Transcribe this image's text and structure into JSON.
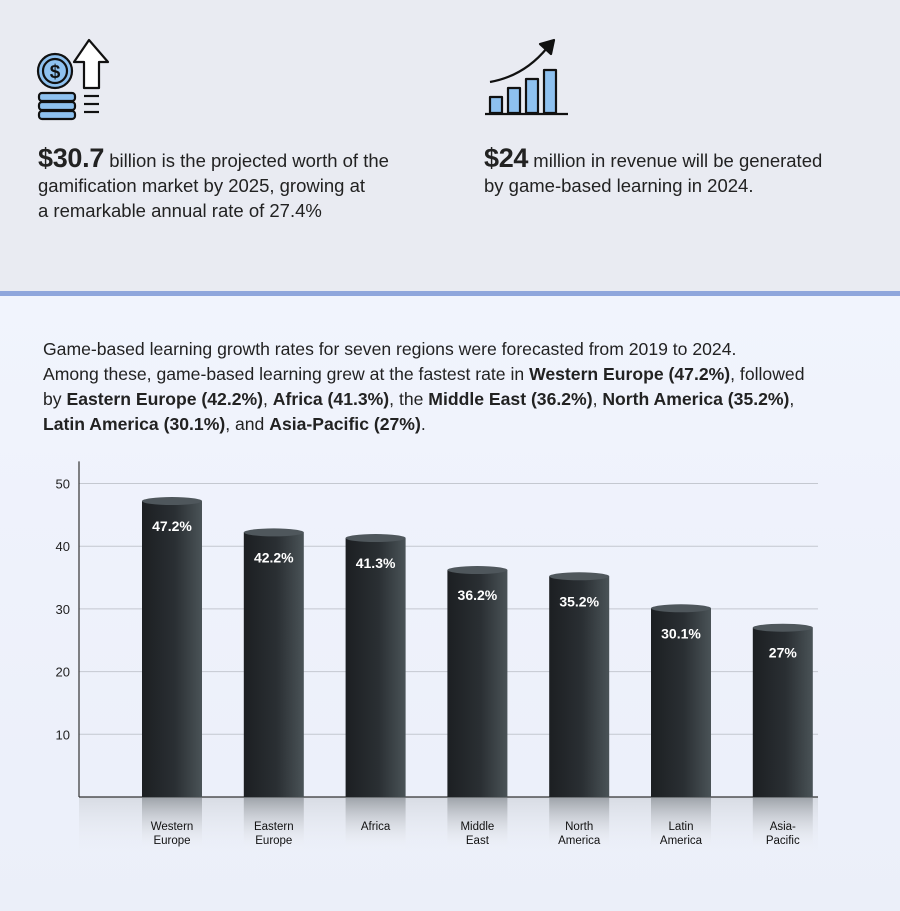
{
  "stats": [
    {
      "value": "$30.7",
      "line1": " billion is the projected worth of the",
      "line2": "gamification market by 2025, growing at",
      "line3": "a remarkable annual rate of 27.4%",
      "icon": "coin-stack-arrow-up-icon"
    },
    {
      "value": "$24",
      "line1": " million in revenue will be generated",
      "line2": "by game-based learning in 2024.",
      "icon": "growth-bar-chart-icon"
    }
  ],
  "intro": {
    "line1": "Game-based learning growth rates for seven regions were forecasted from 2019 to 2024.",
    "line2": "Among these, game-based learning grew at the fastest rate in ",
    "r1": "Western Europe (47.2%)",
    "t1": ", followed",
    "t2": "by ",
    "r2": "Eastern Europe (42.2%)",
    "s1": ", ",
    "r3": "Africa (41.3%)",
    "s2": ", the ",
    "r4": "Middle East (36.2%)",
    "s3": ", ",
    "r5": "North America (35.2%)",
    "s4": ",",
    "r6": "Latin America (30.1%)",
    "s5": ", and ",
    "r7": "Asia-Pacific (27%)",
    "s6": "."
  },
  "chart_data": {
    "type": "bar",
    "categories": [
      [
        "Western",
        "Europe"
      ],
      [
        "Eastern",
        "Europe"
      ],
      [
        "Africa"
      ],
      [
        "Middle",
        "East"
      ],
      [
        "North",
        "America"
      ],
      [
        "Latin",
        "America"
      ],
      [
        "Asia-",
        "Pacific"
      ]
    ],
    "values": [
      47.2,
      42.2,
      41.3,
      36.2,
      35.2,
      30.1,
      27
    ],
    "data_labels": [
      "47.2%",
      "42.2%",
      "41.3%",
      "36.2%",
      "35.2%",
      "30.1%",
      "27%"
    ],
    "yticks": [
      10,
      20,
      30,
      40,
      50
    ],
    "ylim": [
      0,
      54
    ],
    "grid": true,
    "colors": {
      "bar_dark": "#1c1f22",
      "bar_light": "#4a5357",
      "grid": "#c4c8d0",
      "axis": "#333333",
      "label": "#ffffff"
    }
  }
}
